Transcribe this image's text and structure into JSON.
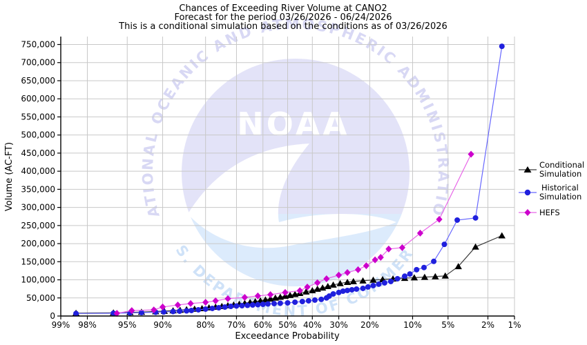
{
  "titles": {
    "line1": "Chances of Exceeding River Volume at CANO2",
    "line2": "Forecast for the period 03/26/2026 - 06/24/2026",
    "line3": "This is a conditional simulation based on the conditions as of 03/26/2026"
  },
  "axes": {
    "x_label": "Exceedance Probability",
    "y_label": "Volume (AC-FT)"
  },
  "watermark": {
    "center_text": "NOAA",
    "arc_text_top": "NATIONAL OCEANIC AND ATMOSPHERIC ADMINISTRATION",
    "arc_text_bottom": "U.S. DEPARTMENT OF COMMERCE",
    "colors": {
      "circle_top": "#e3e3f8",
      "circle_bottom": "#dcebfc",
      "gull": "#ffffff",
      "center_text": "#ffffff",
      "arc_top": "#d8d8f4",
      "arc_bottom": "#cfe2f8"
    }
  },
  "legend": {
    "items": [
      {
        "id": "conditional",
        "line1": "Conditional",
        "line2": "Simulation"
      },
      {
        "id": "historical",
        "line1": "Historical",
        "line2": "Simulation"
      },
      {
        "id": "hefs",
        "line1": "HEFS",
        "line2": ""
      }
    ]
  },
  "chart_data": {
    "type": "line",
    "title": "Chances of Exceeding River Volume at CANO2",
    "xlabel": "Exceedance Probability",
    "ylabel": "Volume (AC-FT)",
    "x_scale": "probit",
    "x_unit": "percent_exceedance",
    "grid": true,
    "legend_position": "right-outside",
    "ylim": [
      0,
      750000
    ],
    "y_tick_step": 50000,
    "x_ticks_percent": [
      99,
      98,
      95,
      90,
      80,
      70,
      60,
      50,
      40,
      30,
      20,
      10,
      5,
      2,
      1
    ],
    "x_tick_labels": [
      "99%",
      "98%",
      "95%",
      "90%",
      "80%",
      "70%",
      "60%",
      "50%",
      "40%",
      "30%",
      "20%",
      "10%",
      "5%",
      "2%",
      "1%"
    ],
    "colors": {
      "grid": "#c8c8c8",
      "spine": "#000000",
      "tick_text": "#000000"
    },
    "series": [
      {
        "id": "conditional",
        "name": "Conditional Simulation",
        "marker": "triangle",
        "marker_color": "#000000",
        "line_color": "#3a3a3a",
        "points": [
          [
            98.5,
            8000
          ],
          [
            96.3,
            9000
          ],
          [
            94.7,
            10000
          ],
          [
            93.3,
            11000
          ],
          [
            91.2,
            12500
          ],
          [
            89.7,
            13500
          ],
          [
            88,
            15000
          ],
          [
            86.5,
            16500
          ],
          [
            85,
            18000
          ],
          [
            83,
            19500
          ],
          [
            81,
            21000
          ],
          [
            79,
            23000
          ],
          [
            77,
            25000
          ],
          [
            75,
            27000
          ],
          [
            73,
            29000
          ],
          [
            71,
            31000
          ],
          [
            69,
            33000
          ],
          [
            67,
            35500
          ],
          [
            65,
            38000
          ],
          [
            63,
            40000
          ],
          [
            61,
            42500
          ],
          [
            59,
            45000
          ],
          [
            57,
            47500
          ],
          [
            55,
            50000
          ],
          [
            53,
            52500
          ],
          [
            51,
            55000
          ],
          [
            49,
            57500
          ],
          [
            47,
            60000
          ],
          [
            45,
            63000
          ],
          [
            42.5,
            67000
          ],
          [
            40,
            70500
          ],
          [
            38,
            74500
          ],
          [
            36,
            78000
          ],
          [
            34,
            82000
          ],
          [
            32,
            86000
          ],
          [
            29.5,
            90000
          ],
          [
            27,
            93500
          ],
          [
            25,
            95500
          ],
          [
            22,
            97500
          ],
          [
            19,
            99500
          ],
          [
            16.5,
            101000
          ],
          [
            14,
            103000
          ],
          [
            11.5,
            104500
          ],
          [
            9.7,
            106000
          ],
          [
            8,
            107500
          ],
          [
            6.5,
            109000
          ],
          [
            5.3,
            111000
          ],
          [
            4,
            137000
          ],
          [
            2.7,
            191000
          ],
          [
            1.4,
            222000
          ]
        ]
      },
      {
        "id": "historical",
        "name": "Historical Simulation",
        "marker": "circle",
        "marker_color": "#2020dd",
        "line_color": "#6666ff",
        "points": [
          [
            98.5,
            7000
          ],
          [
            96.3,
            7600
          ],
          [
            94.7,
            8600
          ],
          [
            93.3,
            9500
          ],
          [
            91.2,
            10500
          ],
          [
            89.8,
            11400
          ],
          [
            88,
            12400
          ],
          [
            86.6,
            13400
          ],
          [
            85,
            14300
          ],
          [
            83.8,
            15300
          ],
          [
            82,
            17200
          ],
          [
            80,
            19100
          ],
          [
            78,
            21000
          ],
          [
            76,
            22900
          ],
          [
            74,
            24800
          ],
          [
            72,
            26700
          ],
          [
            70,
            27700
          ],
          [
            68,
            28600
          ],
          [
            66,
            29500
          ],
          [
            64,
            30500
          ],
          [
            62,
            31400
          ],
          [
            60,
            32400
          ],
          [
            58,
            33400
          ],
          [
            55.5,
            34400
          ],
          [
            53,
            35300
          ],
          [
            50,
            36300
          ],
          [
            47,
            38200
          ],
          [
            44,
            40000
          ],
          [
            41.5,
            42000
          ],
          [
            39,
            44000
          ],
          [
            36.5,
            46000
          ],
          [
            34.5,
            50000
          ],
          [
            33.5,
            55000
          ],
          [
            32,
            61000
          ],
          [
            30,
            65000
          ],
          [
            28.5,
            68700
          ],
          [
            27,
            70600
          ],
          [
            25.5,
            72500
          ],
          [
            24,
            74400
          ],
          [
            22,
            76300
          ],
          [
            20.5,
            80200
          ],
          [
            19,
            84000
          ],
          [
            17.5,
            88000
          ],
          [
            16,
            91600
          ],
          [
            14.5,
            95400
          ],
          [
            13,
            103000
          ],
          [
            11.5,
            110000
          ],
          [
            10.5,
            116000
          ],
          [
            9.3,
            128000
          ],
          [
            8.1,
            134000
          ],
          [
            6.7,
            151000
          ],
          [
            5.4,
            198000
          ],
          [
            4.1,
            265000
          ],
          [
            2.7,
            271000
          ],
          [
            1.4,
            745000
          ]
        ]
      },
      {
        "id": "hefs",
        "name": "HEFS",
        "marker": "diamond",
        "marker_color": "#cc00cc",
        "line_color": "#e866e8",
        "points": [
          [
            96,
            7500
          ],
          [
            94.5,
            15000
          ],
          [
            91.5,
            17000
          ],
          [
            90,
            25000
          ],
          [
            87,
            30500
          ],
          [
            84,
            34500
          ],
          [
            80,
            38000
          ],
          [
            77,
            42000
          ],
          [
            73,
            48000
          ],
          [
            67,
            51500
          ],
          [
            62,
            55500
          ],
          [
            57,
            59000
          ],
          [
            51,
            65000
          ],
          [
            45,
            70000
          ],
          [
            42,
            80000
          ],
          [
            38,
            92000
          ],
          [
            34.5,
            103000
          ],
          [
            30,
            113000
          ],
          [
            27,
            120000
          ],
          [
            23.5,
            128000
          ],
          [
            21,
            139000
          ],
          [
            18.5,
            155000
          ],
          [
            17,
            162000
          ],
          [
            15,
            185000
          ],
          [
            12,
            189000
          ],
          [
            8.7,
            229000
          ],
          [
            6,
            267000
          ],
          [
            3,
            447000
          ]
        ]
      }
    ]
  }
}
